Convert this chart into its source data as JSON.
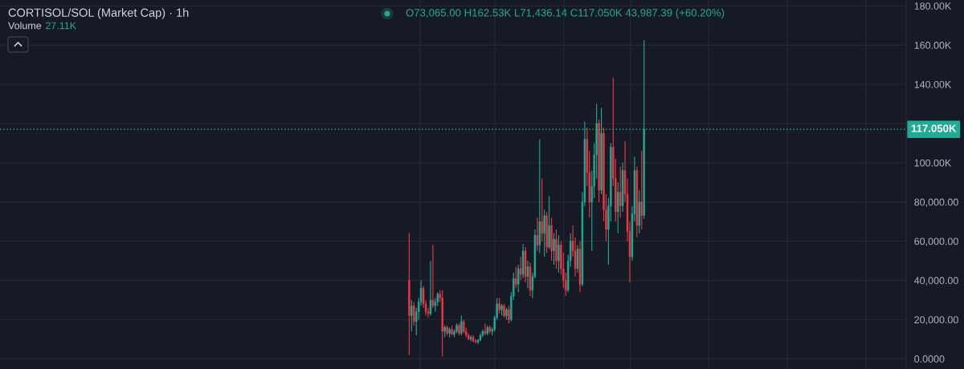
{
  "chart_data": {
    "type": "candlestick",
    "title": "CORTISOL/SOL (Market Cap) · 1h",
    "subtitle": "O73,065.00 H162.53K L71,436.14 C117.050K 43,987.39 (+60.20%)",
    "annotations": [
      "Volume 27.11K"
    ],
    "categories": [
      null,
      null,
      null,
      null,
      null,
      null,
      null,
      null,
      null,
      null,
      null,
      null,
      null,
      null,
      null,
      null,
      null,
      null,
      null,
      null,
      null,
      null,
      null,
      null,
      null,
      null,
      null,
      null,
      null,
      null,
      null,
      null,
      null,
      null,
      null,
      null,
      null,
      null,
      null,
      null,
      null,
      null,
      null,
      null,
      null,
      null,
      null,
      null,
      null,
      null,
      null,
      null,
      null,
      null,
      null,
      null,
      null,
      null,
      null,
      null,
      null,
      null,
      null,
      null,
      null,
      null,
      null,
      null,
      null,
      null,
      null,
      null,
      null,
      null,
      null,
      null,
      null,
      null,
      null,
      null,
      null,
      null,
      null,
      null,
      null,
      null,
      null,
      null,
      null,
      null,
      null,
      null,
      null,
      null,
      null,
      null,
      null,
      null,
      null,
      null,
      null,
      null,
      null,
      null,
      null,
      null,
      null,
      null,
      null,
      null,
      null,
      null,
      null,
      null,
      null,
      null,
      null,
      null,
      null,
      null,
      null,
      null,
      null,
      null,
      null,
      null,
      null,
      null,
      null,
      null,
      null,
      null,
      null,
      null,
      null,
      null,
      null,
      null,
      null,
      null,
      null,
      null,
      null,
      null,
      null,
      null,
      null,
      null,
      null,
      null,
      null,
      null,
      null,
      null,
      null,
      null,
      null,
      null,
      null,
      null,
      null,
      null,
      null,
      null,
      null,
      null,
      null,
      null,
      null,
      null,
      null,
      null,
      null,
      null,
      null,
      null,
      null,
      null,
      null,
      null,
      null,
      null,
      null,
      null,
      null,
      null,
      null,
      null,
      null,
      null,
      null,
      null,
      null,
      null,
      null,
      null,
      null,
      null,
      null,
      null,
      null,
      null,
      null,
      null,
      null,
      null,
      null,
      null,
      null,
      null,
      null,
      null,
      null,
      null,
      null,
      null,
      null,
      null,
      null,
      null,
      null,
      null,
      null,
      null,
      null,
      null,
      null,
      null,
      null,
      null,
      null,
      null,
      null,
      null,
      null,
      null,
      null,
      null,
      null,
      null,
      null,
      null,
      null,
      null,
      null,
      null,
      null,
      null,
      null,
      null,
      null,
      null,
      null,
      null,
      null,
      null,
      null,
      null,
      null,
      null,
      null,
      null,
      null,
      null,
      null,
      null,
      null,
      null,
      null,
      null,
      null,
      null,
      null,
      null,
      null,
      null,
      null,
      null,
      null,
      null,
      null,
      null,
      null,
      null,
      null,
      null,
      null,
      null,
      null,
      null,
      null,
      null,
      null,
      null,
      null,
      null,
      null,
      null,
      null,
      null,
      null,
      null,
      null,
      null,
      null,
      null,
      null,
      null,
      null,
      null,
      null,
      null,
      null,
      null,
      null,
      null,
      null,
      null,
      null,
      null,
      null,
      null,
      null,
      null,
      null,
      null,
      null,
      null,
      null,
      null,
      null,
      null,
      null,
      null,
      null,
      null,
      null,
      null,
      null,
      null,
      null,
      null,
      null,
      null,
      null,
      null,
      null,
      null,
      null,
      null,
      null,
      null,
      null,
      null,
      null,
      null,
      null,
      null,
      null,
      null,
      null,
      null,
      null,
      null,
      null,
      null,
      null,
      null,
      null,
      null,
      null,
      null,
      null,
      null,
      null,
      null,
      null,
      null,
      null,
      null,
      null,
      null
    ],
    "ohlc": [
      null,
      null,
      null,
      null,
      null,
      null,
      null,
      null,
      null,
      null,
      null,
      null,
      null,
      null,
      null,
      null,
      null,
      null,
      null,
      null,
      null,
      null,
      null,
      null,
      null,
      null,
      null,
      null,
      null,
      null,
      null,
      null,
      null,
      null,
      null,
      null,
      null,
      null,
      null,
      null,
      null,
      null,
      null,
      null,
      null,
      null,
      null,
      null,
      null,
      null,
      null,
      null,
      null,
      null,
      null,
      null,
      null,
      null,
      null,
      null,
      null,
      null,
      null,
      null,
      null,
      null,
      null,
      null,
      null,
      null,
      null,
      null,
      null,
      null,
      null,
      null,
      null,
      null,
      null,
      null,
      null,
      null,
      null,
      null,
      null,
      null,
      null,
      null,
      null,
      null,
      null,
      null,
      null,
      null,
      null,
      null,
      null,
      null,
      null,
      null,
      null,
      null,
      null,
      null,
      null,
      null,
      null,
      null,
      null,
      null,
      null,
      null,
      null,
      null,
      null,
      null,
      null,
      null,
      null,
      null,
      null,
      null,
      null,
      null,
      null,
      null,
      null,
      null,
      null,
      null,
      null,
      null,
      null,
      null,
      null,
      null,
      null,
      null,
      null,
      null,
      null,
      null,
      null,
      null,
      null,
      null,
      null,
      null,
      null,
      null,
      null,
      null,
      null,
      null,
      null,
      null,
      null,
      null,
      null,
      null,
      null,
      null,
      null,
      null,
      null,
      null,
      null,
      null,
      null,
      null,
      null,
      null,
      [
        40000,
        64000,
        2000,
        22000
      ],
      [
        22000,
        30000,
        14000,
        27000
      ],
      [
        27000,
        29000,
        17000,
        19000
      ],
      [
        19000,
        26000,
        12000,
        24000
      ],
      [
        24000,
        31000,
        20000,
        29000
      ],
      [
        29000,
        40000,
        27000,
        36000
      ],
      [
        36000,
        37000,
        26000,
        28000
      ],
      [
        28000,
        30000,
        22000,
        24000
      ],
      [
        24000,
        26000,
        21000,
        23000
      ],
      [
        23000,
        50000,
        22000,
        30000
      ],
      [
        30000,
        58000,
        26000,
        27000
      ],
      [
        27000,
        31000,
        24000,
        29000
      ],
      [
        29000,
        34000,
        27000,
        33000
      ],
      [
        33000,
        35000,
        29000,
        31000
      ],
      [
        31000,
        35000,
        1000,
        14000
      ],
      [
        14000,
        17000,
        11000,
        16000
      ],
      [
        16000,
        17000,
        12000,
        13000
      ],
      [
        13000,
        16000,
        11000,
        15000
      ],
      [
        15000,
        17000,
        12000,
        12500
      ],
      [
        12500,
        15000,
        11000,
        14000
      ],
      [
        14000,
        18000,
        13000,
        17000
      ],
      [
        17000,
        18000,
        12000,
        13000
      ],
      [
        13000,
        22000,
        12000,
        19000
      ],
      [
        19000,
        20000,
        13000,
        14000
      ],
      [
        14000,
        16000,
        11000,
        12000
      ],
      [
        12000,
        13000,
        9500,
        10000
      ],
      [
        10000,
        12000,
        9000,
        11000
      ],
      [
        11000,
        12000,
        8500,
        9000
      ],
      [
        9000,
        10000,
        8000,
        8500
      ],
      [
        8500,
        10000,
        7600,
        9500
      ],
      [
        9500,
        13000,
        9000,
        12000
      ],
      [
        12000,
        15000,
        11000,
        14000
      ],
      [
        14000,
        18000,
        12000,
        13000
      ],
      [
        13000,
        17000,
        12000,
        16000
      ],
      [
        16000,
        17000,
        13000,
        14000
      ],
      [
        14000,
        16000,
        12000,
        15000
      ],
      [
        15000,
        22000,
        14000,
        21000
      ],
      [
        21000,
        31000,
        20000,
        28000
      ],
      [
        28000,
        31000,
        23000,
        25000
      ],
      [
        25000,
        28000,
        22000,
        27000
      ],
      [
        27000,
        28000,
        21000,
        22000
      ],
      [
        22000,
        26000,
        20000,
        25000
      ],
      [
        25000,
        27000,
        18000,
        20000
      ],
      [
        20000,
        34000,
        19000,
        32000
      ],
      [
        32000,
        44000,
        30000,
        41000
      ],
      [
        41000,
        47000,
        36000,
        38000
      ],
      [
        38000,
        48000,
        34000,
        46000
      ],
      [
        46000,
        52000,
        40000,
        43000
      ],
      [
        43000,
        58500,
        41000,
        55000
      ],
      [
        55000,
        57000,
        39000,
        42000
      ],
      [
        42000,
        50000,
        36000,
        47000
      ],
      [
        47000,
        49000,
        32000,
        35000
      ],
      [
        35000,
        44000,
        31000,
        42000
      ],
      [
        42000,
        66000,
        41000,
        63000
      ],
      [
        63000,
        72000,
        55000,
        58000
      ],
      [
        58000,
        112000,
        54000,
        70000
      ],
      [
        70000,
        92000,
        60000,
        64000
      ],
      [
        64000,
        76000,
        52000,
        73000
      ],
      [
        73000,
        75000,
        54000,
        57000
      ],
      [
        57000,
        83000,
        56000,
        68000
      ],
      [
        68000,
        72000,
        50000,
        55000
      ],
      [
        55000,
        64000,
        48000,
        61000
      ],
      [
        61000,
        66000,
        46000,
        50000
      ],
      [
        50000,
        63000,
        44000,
        58000
      ],
      [
        58000,
        60000,
        43000,
        46000
      ],
      [
        46000,
        54000,
        36000,
        40000
      ],
      [
        40000,
        44000,
        32000,
        35000
      ],
      [
        35000,
        53000,
        34000,
        50000
      ],
      [
        50000,
        64000,
        47000,
        60000
      ],
      [
        60000,
        68000,
        52000,
        55000
      ],
      [
        55000,
        62000,
        42000,
        46000
      ],
      [
        46000,
        58000,
        44000,
        56000
      ],
      [
        56000,
        60000,
        34000,
        38000
      ],
      [
        38000,
        85000,
        37000,
        80000
      ],
      [
        80000,
        121000,
        78000,
        112000
      ],
      [
        112000,
        118000,
        88000,
        95000
      ],
      [
        95000,
        106000,
        72000,
        80000
      ],
      [
        80000,
        96000,
        55000,
        88000
      ],
      [
        88000,
        110000,
        82000,
        104000
      ],
      [
        104000,
        130000,
        92000,
        120000
      ],
      [
        120000,
        122000,
        80000,
        86000
      ],
      [
        86000,
        128000,
        84000,
        115000
      ],
      [
        115000,
        118000,
        70000,
        76000
      ],
      [
        76000,
        84000,
        60000,
        66000
      ],
      [
        66000,
        82000,
        48000,
        78000
      ],
      [
        78000,
        110000,
        70000,
        108000
      ],
      [
        108000,
        143500,
        88000,
        92000
      ],
      [
        92000,
        102000,
        70000,
        75000
      ],
      [
        75000,
        90000,
        64000,
        85000
      ],
      [
        85000,
        98000,
        72000,
        78000
      ],
      [
        78000,
        100000,
        75000,
        96000
      ],
      [
        96000,
        111000,
        80000,
        84000
      ],
      [
        84000,
        92000,
        60000,
        65000
      ],
      [
        65000,
        70000,
        39000,
        52000
      ],
      [
        52000,
        78000,
        50000,
        74000
      ],
      [
        74000,
        103000,
        70000,
        96000
      ],
      [
        96000,
        98000,
        62000,
        68000
      ],
      [
        68000,
        86000,
        64000,
        80000
      ],
      [
        80000,
        106000,
        66000,
        73000
      ],
      [
        73065,
        162530,
        71436.14,
        117050
      ],
      null,
      null,
      null,
      null,
      null,
      null,
      null,
      null,
      null,
      null,
      null,
      null,
      null,
      null,
      null,
      null,
      null,
      null,
      null,
      null,
      null,
      null,
      null,
      null,
      null,
      null,
      null,
      null,
      null,
      null,
      null,
      null,
      null,
      null,
      null,
      null,
      null,
      null,
      null,
      null,
      null,
      null,
      null,
      null,
      null,
      null,
      null,
      null,
      null,
      null,
      null,
      null,
      null,
      null,
      null,
      null,
      null,
      null,
      null,
      null,
      null,
      null,
      null,
      null,
      null,
      null,
      null,
      null,
      null,
      null,
      null,
      null,
      null,
      null,
      null,
      null,
      null,
      null,
      null,
      null,
      null,
      null,
      null,
      null,
      null,
      null,
      null,
      null,
      null,
      null,
      null,
      null,
      null,
      null,
      null,
      null,
      null,
      null,
      null,
      null,
      null,
      null,
      null,
      null,
      null,
      null,
      null,
      null,
      null,
      null
    ],
    "colors": [
      null,
      null,
      null,
      null,
      null,
      null,
      null,
      null,
      null,
      null,
      null,
      null,
      null,
      null,
      null,
      null,
      null,
      null,
      null,
      null,
      null,
      null,
      null,
      null,
      null,
      null,
      null,
      null,
      null,
      null,
      null,
      null,
      null,
      null,
      null,
      null,
      null,
      null,
      null,
      null,
      null,
      null,
      null,
      null,
      null,
      null,
      null,
      null,
      null,
      null,
      null,
      null,
      null,
      null,
      null,
      null,
      null,
      null,
      null,
      null,
      null,
      null,
      null,
      null,
      null,
      null,
      null,
      null,
      null,
      null,
      null,
      null,
      null,
      null,
      null,
      null,
      null,
      null,
      null,
      null,
      null,
      null,
      null,
      null,
      null,
      null,
      null,
      null,
      null,
      null,
      null,
      null,
      null,
      null,
      null,
      null,
      null,
      null,
      null,
      null,
      null,
      null,
      null,
      null,
      null,
      null,
      null,
      null,
      null,
      null,
      null,
      null,
      null,
      null,
      null,
      null,
      null,
      null,
      null,
      null,
      null,
      null,
      null,
      null,
      null,
      null,
      null,
      null,
      null,
      null,
      null,
      null,
      null,
      null,
      null,
      null,
      null,
      null,
      null,
      null,
      null,
      null,
      null,
      null,
      null,
      null,
      null,
      null,
      null,
      null,
      null,
      null,
      null,
      null,
      null,
      null,
      null,
      null,
      null,
      null,
      null,
      null,
      null,
      null,
      null,
      null,
      null,
      null,
      null,
      null,
      null,
      null,
      "#f23645",
      "#22ab94",
      "#f23645",
      "#22ab94",
      "#22ab94",
      "#22ab94",
      "#f23645",
      "#f23645",
      "#f23645",
      "#22ab94",
      "#f23645",
      "#22ab94",
      "#22ab94",
      "#f23645",
      "#f23645",
      "#22ab94",
      "#f23645",
      "#22ab94",
      "#f23645",
      "#22ab94",
      "#22ab94",
      "#f23645",
      "#22ab94",
      "#f23645",
      "#f23645",
      "#f23645",
      "#22ab94",
      "#f23645",
      "#f23645",
      "#22ab94",
      "#22ab94",
      "#22ab94",
      "#f23645",
      "#22ab94",
      "#f23645",
      "#22ab94",
      "#22ab94",
      "#22ab94",
      "#f23645",
      "#22ab94",
      "#f23645",
      "#22ab94",
      "#f23645",
      "#22ab94",
      "#22ab94",
      "#f23645",
      "#22ab94",
      "#f23645",
      "#22ab94",
      "#f23645",
      "#22ab94",
      "#f23645",
      "#22ab94",
      "#22ab94",
      "#f23645",
      "#22ab94",
      "#f23645",
      "#22ab94",
      "#f23645",
      "#22ab94",
      "#f23645",
      "#22ab94",
      "#f23645",
      "#22ab94",
      "#f23645",
      "#f23645",
      "#f23645",
      "#22ab94",
      "#22ab94",
      "#f23645",
      "#f23645",
      "#22ab94",
      "#f23645",
      "#22ab94",
      "#22ab94",
      "#f23645",
      "#f23645",
      "#22ab94",
      "#22ab94",
      "#22ab94",
      "#f23645",
      "#22ab94",
      "#f23645",
      "#f23645",
      "#22ab94",
      "#22ab94",
      "#f23645",
      "#f23645",
      "#22ab94",
      "#f23645",
      "#22ab94",
      "#f23645",
      "#f23645",
      "#f23645",
      "#22ab94",
      "#22ab94",
      "#f23645",
      "#22ab94",
      "#f23645",
      "#22ab94",
      null,
      null,
      null,
      null,
      null,
      null,
      null,
      null,
      null,
      null,
      null,
      null,
      null,
      null,
      null,
      null,
      null,
      null,
      null,
      null,
      null,
      null,
      null,
      null,
      null,
      null,
      null,
      null,
      null,
      null,
      null,
      null,
      null,
      null,
      null,
      null,
      null,
      null,
      null,
      null,
      null,
      null,
      null,
      null,
      null,
      null,
      null,
      null,
      null,
      null,
      null,
      null,
      null,
      null,
      null,
      null,
      null,
      null,
      null,
      null,
      null,
      null,
      null,
      null,
      null,
      null,
      null,
      null,
      null,
      null,
      null,
      null,
      null,
      null,
      null,
      null,
      null,
      null,
      null,
      null,
      null,
      null,
      null,
      null,
      null,
      null,
      null,
      null,
      null,
      null,
      null,
      null,
      null,
      null,
      null,
      null,
      null,
      null,
      null,
      null,
      null,
      null,
      null,
      null,
      null,
      null,
      null,
      null,
      null,
      null
    ],
    "ylim": [
      -5200,
      183000
    ],
    "yticks": [
      {
        "value": 0,
        "label": "0.0000"
      },
      {
        "value": 20000,
        "label": "20,000.00"
      },
      {
        "value": 40000,
        "label": "40,000.00"
      },
      {
        "value": 60000,
        "label": "60,000.00"
      },
      {
        "value": 80000,
        "label": "80,000.00"
      },
      {
        "value": 100000,
        "label": "100.00K"
      },
      {
        "value": 120000,
        "label": null
      },
      {
        "value": 140000,
        "label": "140.00K"
      },
      {
        "value": 160000,
        "label": "160.00K"
      },
      {
        "value": 180000,
        "label": "180.00K"
      }
    ],
    "grid": true,
    "tick_labels": "y",
    "ref_lines": [
      {
        "axis": "y",
        "value": 117050,
        "label": "117.050K",
        "color": "#22ab94",
        "line_style": "dotted"
      }
    ]
  }
}
